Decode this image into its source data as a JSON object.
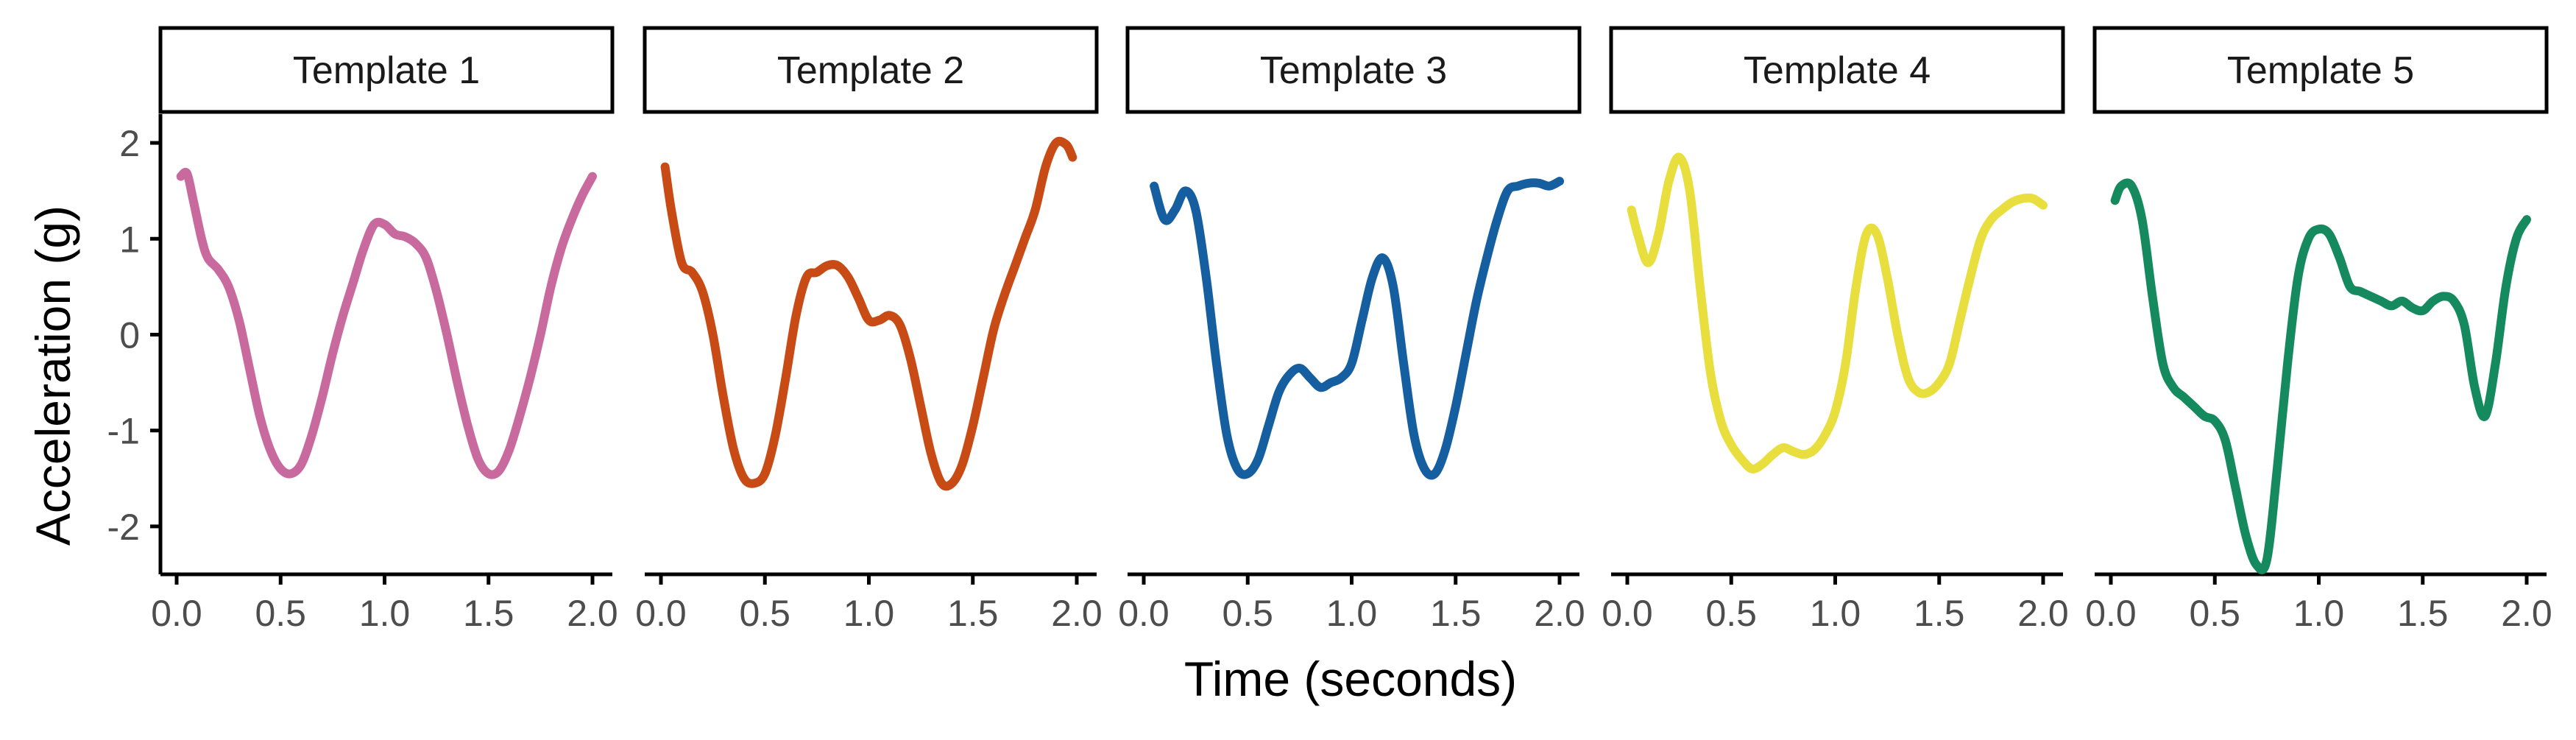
{
  "chart_data": {
    "type": "line",
    "xlabel": "Time (seconds)",
    "ylabel": "Acceleration (g)",
    "xlim": [
      0.0,
      2.0
    ],
    "ylim": [
      -2.5,
      2.3
    ],
    "xticks": [
      0.0,
      0.5,
      1.0,
      1.5,
      2.0
    ],
    "xtick_labels": [
      "0.0",
      "0.5",
      "1.0",
      "1.5",
      "2.0"
    ],
    "yticks": [
      2,
      1,
      0,
      -1,
      -2
    ],
    "ytick_labels": [
      "2",
      "1",
      "0",
      "-1",
      "-2"
    ],
    "grid": false,
    "legend": "none",
    "panels": [
      {
        "name": "Template 1",
        "color": "#C86A9E",
        "x": [
          0.02,
          0.05,
          0.08,
          0.12,
          0.15,
          0.2,
          0.25,
          0.3,
          0.35,
          0.4,
          0.45,
          0.5,
          0.55,
          0.6,
          0.65,
          0.7,
          0.75,
          0.8,
          0.85,
          0.9,
          0.95,
          1.0,
          1.05,
          1.1,
          1.15,
          1.2,
          1.25,
          1.3,
          1.35,
          1.4,
          1.45,
          1.5,
          1.55,
          1.6,
          1.65,
          1.7,
          1.75,
          1.8,
          1.85,
          1.9,
          1.95,
          2.0
        ],
        "y": [
          1.65,
          1.68,
          1.4,
          1.0,
          0.8,
          0.68,
          0.5,
          0.15,
          -0.35,
          -0.85,
          -1.2,
          -1.4,
          -1.45,
          -1.35,
          -1.05,
          -0.65,
          -0.2,
          0.2,
          0.55,
          0.9,
          1.15,
          1.15,
          1.05,
          1.02,
          0.95,
          0.8,
          0.45,
          0.0,
          -0.5,
          -0.95,
          -1.3,
          -1.45,
          -1.42,
          -1.2,
          -0.85,
          -0.45,
          0.0,
          0.5,
          0.9,
          1.2,
          1.45,
          1.65
        ]
      },
      {
        "name": "Template 2",
        "color": "#C84B15",
        "x": [
          0.02,
          0.05,
          0.1,
          0.15,
          0.2,
          0.25,
          0.3,
          0.35,
          0.4,
          0.45,
          0.5,
          0.55,
          0.6,
          0.65,
          0.7,
          0.75,
          0.8,
          0.85,
          0.9,
          0.95,
          1.0,
          1.05,
          1.1,
          1.15,
          1.2,
          1.25,
          1.3,
          1.35,
          1.4,
          1.45,
          1.5,
          1.55,
          1.6,
          1.65,
          1.7,
          1.75,
          1.8,
          1.85,
          1.9,
          1.95,
          1.98
        ],
        "y": [
          1.75,
          1.3,
          0.75,
          0.65,
          0.45,
          0.0,
          -0.65,
          -1.2,
          -1.5,
          -1.55,
          -1.45,
          -1.05,
          -0.45,
          0.2,
          0.6,
          0.65,
          0.72,
          0.72,
          0.6,
          0.38,
          0.15,
          0.15,
          0.2,
          0.1,
          -0.25,
          -0.75,
          -1.25,
          -1.55,
          -1.55,
          -1.35,
          -0.95,
          -0.45,
          0.05,
          0.4,
          0.7,
          1.0,
          1.3,
          1.75,
          2.0,
          1.98,
          1.85
        ]
      },
      {
        "name": "Template 3",
        "color": "#155EA0",
        "x": [
          0.05,
          0.1,
          0.15,
          0.2,
          0.25,
          0.3,
          0.35,
          0.4,
          0.45,
          0.5,
          0.55,
          0.6,
          0.65,
          0.7,
          0.75,
          0.8,
          0.85,
          0.9,
          0.95,
          1.0,
          1.05,
          1.1,
          1.15,
          1.2,
          1.25,
          1.3,
          1.35,
          1.4,
          1.45,
          1.5,
          1.55,
          1.6,
          1.65,
          1.7,
          1.75,
          1.8,
          1.85,
          1.9,
          1.95,
          2.0
        ],
        "y": [
          1.55,
          1.2,
          1.3,
          1.5,
          1.3,
          0.6,
          -0.3,
          -1.05,
          -1.4,
          -1.45,
          -1.3,
          -0.95,
          -0.6,
          -0.42,
          -0.35,
          -0.45,
          -0.55,
          -0.5,
          -0.45,
          -0.3,
          0.15,
          0.6,
          0.8,
          0.5,
          -0.3,
          -1.05,
          -1.4,
          -1.45,
          -1.2,
          -0.75,
          -0.2,
          0.35,
          0.8,
          1.2,
          1.5,
          1.55,
          1.58,
          1.58,
          1.55,
          1.6
        ]
      },
      {
        "name": "Template 4",
        "color": "#E8DF3E",
        "x": [
          0.02,
          0.05,
          0.1,
          0.15,
          0.2,
          0.25,
          0.3,
          0.35,
          0.4,
          0.45,
          0.5,
          0.55,
          0.6,
          0.65,
          0.7,
          0.75,
          0.8,
          0.85,
          0.9,
          0.95,
          1.0,
          1.05,
          1.1,
          1.15,
          1.2,
          1.25,
          1.3,
          1.35,
          1.4,
          1.45,
          1.5,
          1.55,
          1.6,
          1.65,
          1.7,
          1.75,
          1.8,
          1.85,
          1.9,
          1.95,
          2.0
        ],
        "y": [
          1.3,
          1.05,
          0.75,
          1.05,
          1.6,
          1.85,
          1.5,
          0.5,
          -0.4,
          -0.9,
          -1.15,
          -1.3,
          -1.4,
          -1.35,
          -1.25,
          -1.18,
          -1.22,
          -1.25,
          -1.2,
          -1.05,
          -0.8,
          -0.3,
          0.5,
          1.05,
          1.05,
          0.6,
          0.0,
          -0.45,
          -0.6,
          -0.6,
          -0.5,
          -0.3,
          0.15,
          0.6,
          1.0,
          1.2,
          1.3,
          1.38,
          1.42,
          1.42,
          1.35
        ]
      },
      {
        "name": "Template 5",
        "color": "#158A5E",
        "x": [
          0.02,
          0.05,
          0.1,
          0.15,
          0.2,
          0.25,
          0.3,
          0.35,
          0.4,
          0.45,
          0.5,
          0.55,
          0.6,
          0.65,
          0.7,
          0.75,
          0.8,
          0.85,
          0.9,
          0.95,
          1.0,
          1.05,
          1.1,
          1.15,
          1.2,
          1.25,
          1.3,
          1.35,
          1.4,
          1.45,
          1.5,
          1.55,
          1.6,
          1.65,
          1.7,
          1.75,
          1.8,
          1.85,
          1.9,
          1.95,
          2.0
        ],
        "y": [
          1.4,
          1.55,
          1.55,
          1.2,
          0.4,
          -0.3,
          -0.55,
          -0.65,
          -0.75,
          -0.85,
          -0.9,
          -1.1,
          -1.6,
          -2.1,
          -2.4,
          -2.35,
          -1.4,
          -0.3,
          0.6,
          1.0,
          1.1,
          1.05,
          0.8,
          0.5,
          0.45,
          0.4,
          0.35,
          0.3,
          0.35,
          0.28,
          0.25,
          0.35,
          0.4,
          0.35,
          0.1,
          -0.55,
          -0.85,
          -0.3,
          0.5,
          1.0,
          1.2
        ]
      }
    ]
  }
}
